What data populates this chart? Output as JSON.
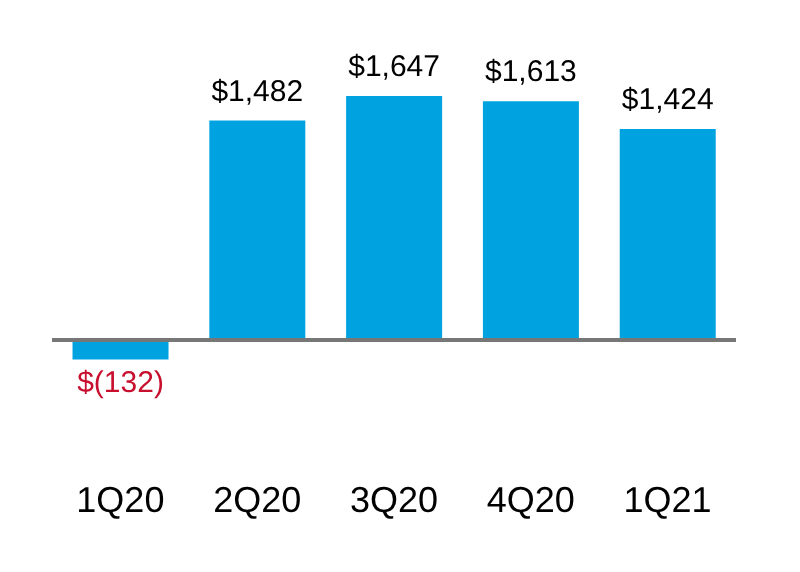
{
  "chart_data": {
    "type": "bar",
    "categories": [
      "1Q20",
      "2Q20",
      "3Q20",
      "4Q20",
      "1Q21"
    ],
    "values": [
      -132,
      1482,
      1647,
      1613,
      1424
    ],
    "color": "#00a3e0",
    "value_labels": [
      "$(132)",
      "$1,482",
      "$1,647",
      "$1,613",
      "$1,424"
    ]
  }
}
